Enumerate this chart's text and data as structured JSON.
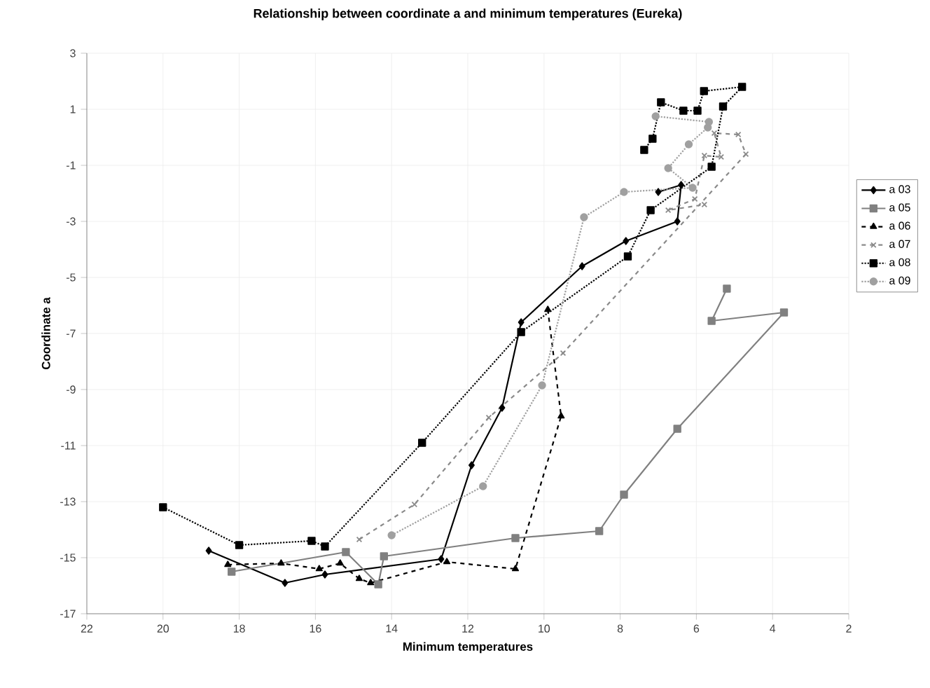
{
  "chart_data": {
    "type": "line",
    "title": "Relationship between coordinate a and minimum temperatures (Eureka)",
    "xlabel": "Minimum temperatures",
    "ylabel": "Coordinate a",
    "xlim": [
      22,
      2
    ],
    "xticks": [
      22,
      20,
      18,
      16,
      14,
      12,
      10,
      8,
      6,
      4,
      2
    ],
    "ylim": [
      -17,
      3
    ],
    "yticks": [
      -17,
      -15,
      -13,
      -11,
      -9,
      -7,
      -5,
      -3,
      -1,
      1,
      3
    ],
    "grid": true,
    "legend": "right",
    "series": [
      {
        "name": "a 03",
        "color": "#000000",
        "marker": "diamond",
        "line_style": "solid",
        "x": [
          18.8,
          16.8,
          15.75,
          12.7,
          11.9,
          11.1,
          10.6,
          9.0,
          7.85,
          6.5,
          6.4,
          7.0
        ],
        "values": [
          -14.75,
          -15.9,
          -15.6,
          -15.05,
          -11.7,
          -9.65,
          -6.6,
          -4.6,
          -3.7,
          -3.0,
          -1.7,
          -1.95
        ]
      },
      {
        "name": "a 05",
        "color": "#808080",
        "marker": "square",
        "line_style": "solid",
        "x": [
          18.2,
          15.2,
          14.35,
          14.2,
          10.75,
          8.55,
          7.9,
          6.5,
          3.7,
          5.6,
          5.2
        ],
        "values": [
          -15.5,
          -14.8,
          -15.95,
          -14.95,
          -14.3,
          -14.05,
          -12.75,
          -10.4,
          -6.25,
          -6.55,
          -5.4
        ]
      },
      {
        "name": "a 06",
        "color": "#000000",
        "marker": "triangle",
        "line_style": "dashed",
        "x": [
          18.3,
          16.9,
          15.9,
          15.35,
          14.85,
          14.55,
          12.55,
          10.75,
          9.55,
          9.9
        ],
        "values": [
          -15.25,
          -15.2,
          -15.4,
          -15.2,
          -15.75,
          -15.9,
          -15.15,
          -15.4,
          -9.95,
          -6.15
        ]
      },
      {
        "name": "a 07",
        "color": "#8a8a8a",
        "marker": "cross",
        "line_style": "dashed",
        "x": [
          14.85,
          13.4,
          11.45,
          9.5,
          4.7,
          4.9,
          5.53,
          5.35,
          5.79,
          6.04,
          6.74,
          5.79
        ],
        "values": [
          -14.35,
          -13.1,
          -10.0,
          -7.7,
          -0.6,
          0.1,
          0.15,
          -0.7,
          -0.65,
          -2.2,
          -2.6,
          -2.4
        ]
      },
      {
        "name": "a 08",
        "color": "#000000",
        "marker": "square",
        "line_style": "dotted",
        "x": [
          20.0,
          18.0,
          16.1,
          15.75,
          13.2,
          10.6,
          7.8,
          7.2,
          5.6,
          5.3,
          4.8,
          5.8,
          5.97,
          6.34,
          6.93,
          7.15,
          7.37
        ],
        "values": [
          -13.2,
          -14.55,
          -14.4,
          -14.6,
          -10.9,
          -6.95,
          -4.25,
          -2.6,
          -1.05,
          1.1,
          1.8,
          1.65,
          0.95,
          0.95,
          1.25,
          -0.05,
          -0.45
        ]
      },
      {
        "name": "a 09",
        "color": "#a0a0a0",
        "marker": "circle",
        "line_style": "dotted",
        "x": [
          14.0,
          11.6,
          10.05,
          8.95,
          7.9,
          6.1,
          6.74,
          6.2,
          5.7,
          5.67,
          7.07
        ],
        "values": [
          -14.2,
          -12.45,
          -8.85,
          -2.85,
          -1.95,
          -1.8,
          -1.1,
          -0.25,
          0.35,
          0.55,
          0.75
        ]
      }
    ]
  }
}
